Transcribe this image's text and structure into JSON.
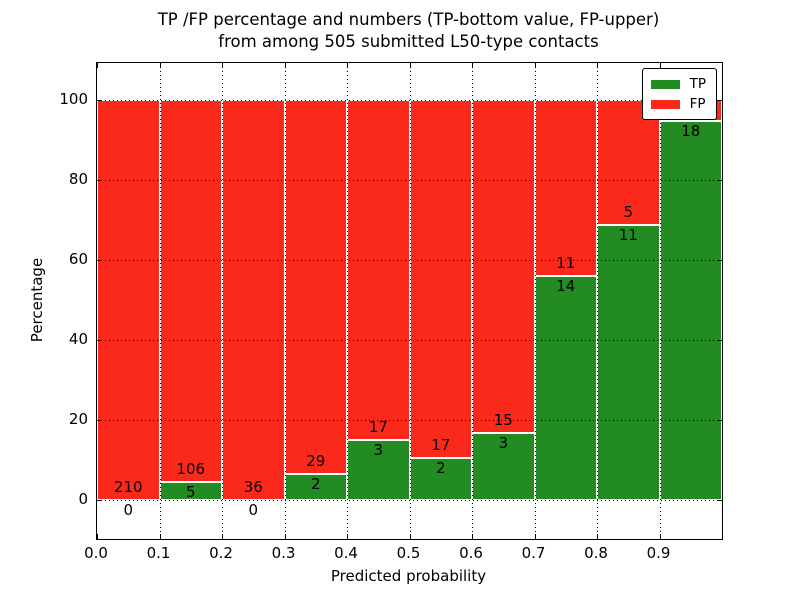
{
  "chart": {
    "title_line1": "TP /FP percentage and numbers (TP-bottom value, FP-upper)",
    "title_line2": "from among 505 submitted L50-type contacts",
    "xlabel": "Predicted probability",
    "ylabel": "Percentage"
  },
  "legend": {
    "items": [
      {
        "label": "TP",
        "color": "#228b22",
        "swatch_name": "legend-swatch-tp"
      },
      {
        "label": "FP",
        "color": "#fb291b",
        "swatch_name": "legend-swatch-fp"
      }
    ],
    "position": "upper right"
  },
  "chart_data": {
    "type": "bar",
    "stacked": true,
    "title": "TP /FP percentage and numbers (TP-bottom value, FP-upper) from among 505 submitted L50-type contacts",
    "xlabel": "Predicted probability",
    "ylabel": "Percentage",
    "xlim": [
      0.0,
      1.0
    ],
    "ylim": [
      -10,
      110
    ],
    "grid": true,
    "grid_style": "dotted",
    "legend_position": "upper right",
    "x_ticks": [
      "0.0",
      "0.1",
      "0.2",
      "0.3",
      "0.4",
      "0.5",
      "0.6",
      "0.7",
      "0.8",
      "0.9"
    ],
    "y_ticks": [
      0,
      20,
      40,
      60,
      80,
      100
    ],
    "bin_edges": [
      0.0,
      0.1,
      0.2,
      0.3,
      0.4,
      0.5,
      0.6,
      0.7,
      0.8,
      0.9,
      1.0
    ],
    "series": [
      {
        "name": "TP",
        "color": "#228b22",
        "percent": [
          0,
          4.5,
          0,
          6.45,
          15.0,
          10.53,
          16.67,
          56.0,
          68.75,
          94.74
        ],
        "labels": [
          "0",
          "5",
          "0",
          "2",
          "3",
          "2",
          "3",
          "14",
          "11",
          "18"
        ]
      },
      {
        "name": "FP",
        "color": "#fb291b",
        "percent": [
          100,
          95.5,
          100,
          93.55,
          85.0,
          89.47,
          83.33,
          44.0,
          31.25,
          5.26
        ],
        "labels": [
          "210",
          "106",
          "36",
          "29",
          "17",
          "17",
          "15",
          "11",
          "5",
          ""
        ]
      }
    ]
  }
}
